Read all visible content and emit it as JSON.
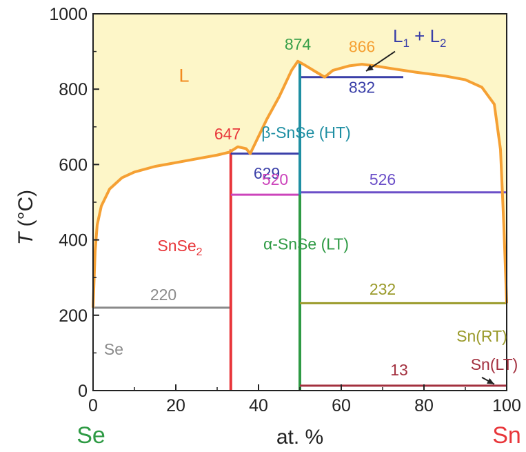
{
  "chart_data": {
    "type": "phase-diagram",
    "xlabel": "at. %",
    "ylabel_italic": "T",
    "ylabel_rest": " (°C)",
    "xlim": [
      0,
      100
    ],
    "ylim": [
      0,
      1000
    ],
    "x_ticks": [
      "0",
      "20",
      "40",
      "60",
      "80",
      "100"
    ],
    "y_ticks": [
      "0",
      "200",
      "400",
      "600",
      "800",
      "1000"
    ],
    "left_element": "Se",
    "right_element": "Sn",
    "colors": {
      "liquid_fill": "#fdf6c8",
      "liquidus": "#f5a033",
      "axis": "#222222",
      "se_green": "#2e9a44",
      "sn_red": "#e8363a"
    },
    "liquidus": [
      [
        0,
        220
      ],
      [
        0.5,
        370
      ],
      [
        1,
        440
      ],
      [
        2,
        490
      ],
      [
        4,
        535
      ],
      [
        7,
        565
      ],
      [
        10,
        580
      ],
      [
        15,
        595
      ],
      [
        20,
        605
      ],
      [
        25,
        615
      ],
      [
        30,
        625
      ],
      [
        33,
        633
      ],
      [
        35,
        647
      ],
      [
        37,
        642
      ],
      [
        38,
        629
      ],
      [
        42,
        720
      ],
      [
        45,
        780
      ],
      [
        48,
        850
      ],
      [
        49.5,
        874
      ],
      [
        51,
        865
      ],
      [
        54,
        845
      ],
      [
        56,
        832
      ],
      [
        58,
        850
      ],
      [
        62,
        862
      ],
      [
        65,
        866
      ],
      [
        68,
        862
      ],
      [
        72,
        855
      ],
      [
        78,
        845
      ],
      [
        85,
        835
      ],
      [
        90,
        825
      ],
      [
        94,
        805
      ],
      [
        97,
        760
      ],
      [
        98.5,
        640
      ],
      [
        99.3,
        440
      ],
      [
        100,
        232
      ]
    ],
    "lines": [
      {
        "name": "se-eutectic-220",
        "x": [
          0,
          33
        ],
        "y": [
          220,
          220
        ],
        "color": "#8a8a8a",
        "width": 3
      },
      {
        "name": "snse2-compound",
        "x": [
          33.3,
          33.3
        ],
        "y": [
          0,
          640
        ],
        "color": "#e8363a",
        "width": 4
      },
      {
        "name": "peritectic-629",
        "x": [
          33.3,
          50
        ],
        "y": [
          629,
          629
        ],
        "color": "#3a3fa8",
        "width": 3
      },
      {
        "name": "transition-520",
        "x": [
          33.3,
          50
        ],
        "y": [
          520,
          520
        ],
        "color": "#cc44bb",
        "width": 3
      },
      {
        "name": "eutectic-526",
        "x": [
          50,
          100
        ],
        "y": [
          526,
          526
        ],
        "color": "#6b4fc8",
        "width": 3
      },
      {
        "name": "monotectic-832",
        "x": [
          50,
          75
        ],
        "y": [
          832,
          832
        ],
        "color": "#3a3fa8",
        "width": 3
      },
      {
        "name": "snse-ht-segment",
        "x": [
          50,
          50
        ],
        "y": [
          520,
          874
        ],
        "color": "#1f8fa3",
        "width": 4
      },
      {
        "name": "snse-lt-segment",
        "x": [
          50,
          50
        ],
        "y": [
          0,
          520
        ],
        "color": "#2e9a44",
        "width": 4
      },
      {
        "name": "sn-melting-232",
        "x": [
          50,
          100
        ],
        "y": [
          232,
          232
        ],
        "color": "#9a9a2a",
        "width": 3
      },
      {
        "name": "sn-transition-13",
        "x": [
          50,
          100
        ],
        "y": [
          13,
          13
        ],
        "color": "#a3303f",
        "width": 3
      }
    ],
    "labels": [
      {
        "name": "label-liquid",
        "text": "L",
        "x": 22,
        "y": 820,
        "color": "#f28a20",
        "size": 27
      },
      {
        "name": "label-874",
        "text": "874",
        "x": 49.5,
        "y": 905,
        "color": "#3aa04a",
        "size": 23
      },
      {
        "name": "label-866",
        "text": "866",
        "x": 65,
        "y": 898,
        "color": "#f5a033",
        "size": 23
      },
      {
        "name": "label-647",
        "text": "647",
        "x": 32.5,
        "y": 667,
        "color": "#e8363a",
        "size": 23
      },
      {
        "name": "label-629",
        "text": "629",
        "x": 42,
        "y": 562,
        "color": "#3a3fa8",
        "size": 23
      },
      {
        "name": "label-520",
        "text": "520",
        "x": 44,
        "y": 546,
        "color": "#cc44bb",
        "size": 23
      },
      {
        "name": "label-526",
        "text": "526",
        "x": 70,
        "y": 546,
        "color": "#6b4fc8",
        "size": 23
      },
      {
        "name": "label-832",
        "text": "832",
        "x": 65,
        "y": 790,
        "color": "#3a3fa8",
        "size": 23
      },
      {
        "name": "label-beta-snse",
        "text": "β-SnSe (HT)",
        "x": 51.5,
        "y": 670,
        "color": "#1f8fa3",
        "size": 23
      },
      {
        "name": "label-alpha-snse",
        "text": "α-SnSe (LT)",
        "x": 51.5,
        "y": 375,
        "color": "#2e9a44",
        "size": 23
      },
      {
        "name": "label-220",
        "text": "220",
        "x": 17,
        "y": 240,
        "color": "#8a8a8a",
        "size": 23
      },
      {
        "name": "label-232",
        "text": "232",
        "x": 70,
        "y": 255,
        "color": "#9a9a2a",
        "size": 23
      },
      {
        "name": "label-se-phase",
        "text": "Se",
        "x": 5,
        "y": 95,
        "color": "#8a8a8a",
        "size": 23
      },
      {
        "name": "label-sn-rt",
        "text": "Sn(RT)",
        "x": 94,
        "y": 130,
        "color": "#9a9a2a",
        "size": 23
      },
      {
        "name": "label-sn-lt",
        "text": "Sn(LT)",
        "x": 97,
        "y": 55,
        "color": "#a3303f",
        "size": 23
      },
      {
        "name": "label-13",
        "text": "13",
        "x": 74,
        "y": 40,
        "color": "#a3303f",
        "size": 23
      }
    ],
    "snse2_label": {
      "main": "SnSe",
      "sub": "2",
      "x": 21,
      "y": 370,
      "color": "#e8363a"
    },
    "l1l2_label": {
      "text1": "L",
      "sub1": "1",
      "text2": " + L",
      "sub2": "2",
      "x": 72.5,
      "y": 925,
      "color": "#3a3fa8"
    },
    "arrows": [
      {
        "name": "arrow-l1l2",
        "from": [
          73,
          900
        ],
        "to": [
          66,
          848
        ],
        "color": "#222222"
      },
      {
        "name": "arrow-snlt",
        "from": [
          94,
          35
        ],
        "to": [
          97,
          17
        ],
        "color": "#222222"
      }
    ]
  }
}
